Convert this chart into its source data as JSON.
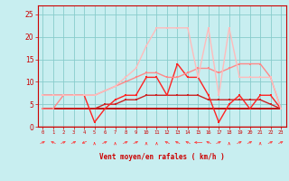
{
  "xlabel": "Vent moyen/en rafales ( km/h )",
  "bg_color": "#c8eef0",
  "grid_color": "#88cccc",
  "x_labels": [
    "0",
    "1",
    "2",
    "3",
    "4",
    "5",
    "6",
    "7",
    "8",
    "9",
    "10",
    "11",
    "12",
    "13",
    "14",
    "15",
    "16",
    "17",
    "18",
    "19",
    "20",
    "21",
    "22",
    "23"
  ],
  "ylim": [
    0,
    27
  ],
  "yticks": [
    0,
    5,
    10,
    15,
    20,
    25
  ],
  "series": [
    {
      "y": [
        4,
        4,
        4,
        4,
        4,
        4,
        4,
        4,
        4,
        4,
        4,
        4,
        4,
        4,
        4,
        4,
        4,
        4,
        4,
        4,
        4,
        4,
        4,
        4
      ],
      "color": "#bb0000",
      "lw": 1.3,
      "ms": 2.0,
      "alpha": 1.0
    },
    {
      "y": [
        4,
        4,
        4,
        4,
        4,
        4,
        5,
        5,
        6,
        6,
        7,
        7,
        7,
        7,
        7,
        7,
        6,
        6,
        6,
        6,
        6,
        6,
        5,
        4
      ],
      "color": "#cc2222",
      "lw": 1.0,
      "ms": 2.0,
      "alpha": 1.0
    },
    {
      "y": [
        7,
        7,
        7,
        7,
        7,
        1,
        4,
        6,
        7,
        7,
        11,
        11,
        7,
        14,
        11,
        11,
        7,
        1,
        5,
        7,
        4,
        7,
        7,
        4
      ],
      "color": "#ff2222",
      "lw": 1.0,
      "ms": 2.0,
      "alpha": 1.0
    },
    {
      "y": [
        4,
        4,
        7,
        7,
        7,
        7,
        8,
        9,
        10,
        11,
        12,
        12,
        11,
        11,
        12,
        13,
        13,
        12,
        13,
        14,
        14,
        14,
        11,
        4
      ],
      "color": "#ff8888",
      "lw": 1.0,
      "ms": 2.0,
      "alpha": 1.0
    },
    {
      "y": [
        7,
        7,
        7,
        7,
        7,
        7,
        8,
        9,
        11,
        13,
        18,
        22,
        22,
        22,
        22,
        11,
        22,
        7,
        22,
        11,
        11,
        11,
        11,
        4
      ],
      "color": "#ffbbbb",
      "lw": 1.0,
      "ms": 2.0,
      "alpha": 1.0
    }
  ],
  "arrow_directions": [
    45,
    -45,
    45,
    45,
    -135,
    0,
    45,
    0,
    45,
    45,
    0,
    0,
    -45,
    -45,
    -45,
    -90,
    -45,
    45,
    0,
    45,
    45,
    0,
    45,
    45
  ]
}
